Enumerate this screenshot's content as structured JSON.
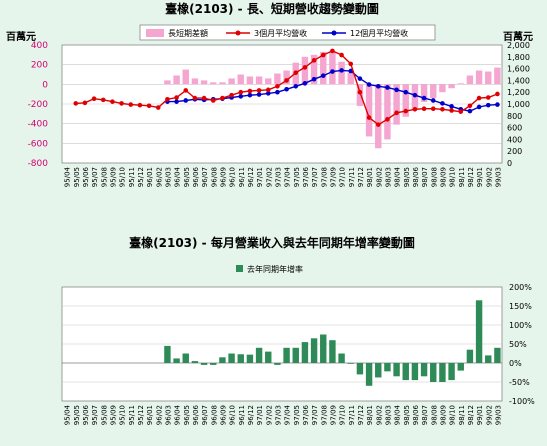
{
  "chart_data": [
    {
      "type": "bar+line",
      "title": "臺橡(2103) -  長、短期營收趨勢變動圖",
      "ylabel_left": "百萬元",
      "ylabel_right": "百萬元",
      "ylim_left": [
        -800,
        400
      ],
      "ylim_right": [
        0,
        2000
      ],
      "yticks_left": [
        "400",
        "200",
        "0",
        "-200",
        "-400",
        "-600",
        "-800"
      ],
      "yticks_right": [
        "2,000",
        "1,800",
        "1,600",
        "1,400",
        "1,200",
        "1,000",
        "800",
        "600",
        "400",
        "200",
        "0"
      ],
      "legend": [
        "長短期差額",
        "3個月平均營收",
        "12個月平均營收"
      ],
      "colors": {
        "bar": "#f4a6d0",
        "line3": "#e00000",
        "line12": "#0000cc"
      },
      "categories": [
        "95/04",
        "95/05",
        "95/06",
        "95/07",
        "95/08",
        "95/09",
        "95/10",
        "95/11",
        "95/12",
        "96/01",
        "96/02",
        "96/03",
        "96/04",
        "96/05",
        "96/06",
        "96/07",
        "96/08",
        "96/09",
        "96/10",
        "96/11",
        "96/12",
        "97/01",
        "97/02",
        "97/03",
        "97/04",
        "97/05",
        "97/06",
        "97/07",
        "97/08",
        "97/09",
        "97/10",
        "97/11",
        "97/12",
        "98/01",
        "98/02",
        "98/03",
        "98/04",
        "98/05",
        "98/06",
        "98/07",
        "98/08",
        "98/09",
        "98/10",
        "98/11",
        "98/12",
        "99/01",
        "99/02",
        "99/03"
      ],
      "series": [
        {
          "name": "長短期差額",
          "axis": "left",
          "values": [
            null,
            null,
            null,
            null,
            null,
            null,
            null,
            null,
            null,
            null,
            null,
            40,
            90,
            150,
            60,
            40,
            20,
            20,
            60,
            100,
            80,
            80,
            60,
            110,
            140,
            220,
            280,
            300,
            330,
            330,
            230,
            120,
            -220,
            -530,
            -650,
            -560,
            -410,
            -330,
            -250,
            -180,
            -140,
            -80,
            -40,
            10,
            90,
            140,
            130,
            170
          ]
        },
        {
          "name": "3個月平均營收",
          "axis": "right",
          "values": [
            null,
            1010,
            1020,
            1090,
            1070,
            1040,
            1010,
            990,
            980,
            970,
            940,
            1080,
            1110,
            1230,
            1100,
            1100,
            1060,
            1100,
            1150,
            1200,
            1220,
            1230,
            1240,
            1300,
            1400,
            1530,
            1620,
            1740,
            1830,
            1900,
            1830,
            1680,
            1200,
            770,
            650,
            740,
            850,
            880,
            910,
            920,
            920,
            910,
            890,
            870,
            970,
            1100,
            1110,
            1170
          ]
        },
        {
          "name": "12個月平均營收",
          "axis": "right",
          "values": [
            null,
            null,
            null,
            null,
            null,
            null,
            null,
            null,
            null,
            null,
            null,
            1040,
            1040,
            1060,
            1080,
            1070,
            1080,
            1090,
            1110,
            1130,
            1150,
            1160,
            1180,
            1200,
            1250,
            1300,
            1350,
            1420,
            1480,
            1550,
            1570,
            1560,
            1430,
            1330,
            1300,
            1280,
            1240,
            1200,
            1150,
            1100,
            1060,
            1010,
            960,
            910,
            880,
            950,
            980,
            990
          ]
        }
      ]
    },
    {
      "type": "bar",
      "title": "臺橡(2103) -  每月營業收入與去年同期年增率變動圖",
      "legend": [
        "去年同期年增率"
      ],
      "colors": {
        "bar": "#2e8b57"
      },
      "ylim": [
        -100,
        200
      ],
      "yticks": [
        "200%",
        "150%",
        "100%",
        "50%",
        "0%",
        "-50%",
        "-100%"
      ],
      "categories": [
        "95/04",
        "95/05",
        "95/06",
        "95/07",
        "95/08",
        "95/09",
        "95/10",
        "95/11",
        "95/12",
        "96/01",
        "96/02",
        "96/03",
        "96/04",
        "96/05",
        "96/06",
        "96/07",
        "96/08",
        "96/09",
        "96/10",
        "96/11",
        "96/12",
        "97/01",
        "97/02",
        "97/03",
        "97/04",
        "97/05",
        "97/06",
        "97/07",
        "97/08",
        "97/09",
        "97/10",
        "97/11",
        "97/12",
        "98/01",
        "98/02",
        "98/03",
        "98/04",
        "98/05",
        "98/06",
        "98/07",
        "98/08",
        "98/09",
        "98/10",
        "98/11",
        "98/12",
        "99/01",
        "99/02",
        "99/03"
      ],
      "values": [
        null,
        null,
        null,
        null,
        null,
        null,
        null,
        null,
        null,
        null,
        null,
        45,
        12,
        25,
        5,
        -5,
        -5,
        15,
        25,
        23,
        22,
        40,
        30,
        -5,
        40,
        40,
        55,
        65,
        75,
        60,
        25,
        0,
        -30,
        -60,
        -38,
        -22,
        -35,
        -45,
        -45,
        -35,
        -50,
        -50,
        -45,
        -20,
        35,
        165,
        20,
        40
      ]
    }
  ]
}
